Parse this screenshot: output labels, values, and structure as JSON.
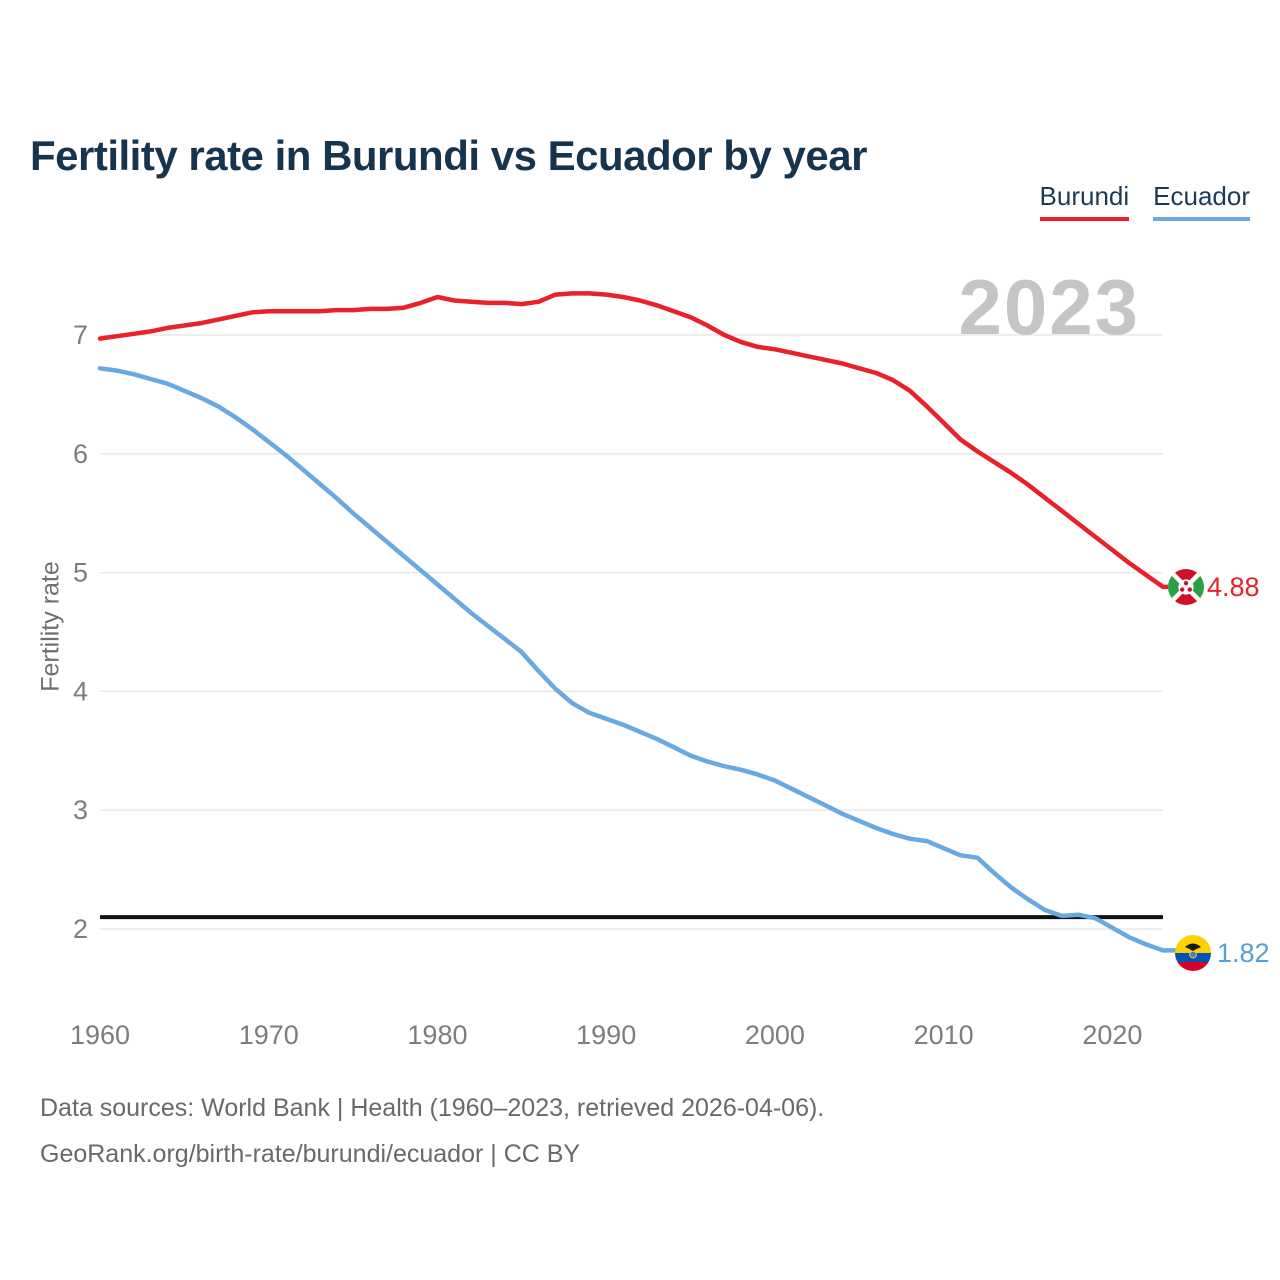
{
  "page": {
    "title": "Fertility rate in Burundi vs Ecuador by year",
    "watermark_year": "2023"
  },
  "legend": {
    "items": [
      {
        "label": "Burundi",
        "color": "#e8212a"
      },
      {
        "label": "Ecuador",
        "color": "#67a9e0"
      }
    ]
  },
  "footer": {
    "line1": "Data sources: World Bank | Health (1960–2023, retrieved 2026-04-06).",
    "line2": "GeoRank.org/birth-rate/burundi/ecuador | CC BY"
  },
  "chart_data": {
    "type": "line",
    "title": "Fertility rate in Burundi vs Ecuador by year",
    "xlabel": "",
    "ylabel": "Fertility rate",
    "x_range": [
      1960,
      2023
    ],
    "ylim": [
      1.7,
      7.5
    ],
    "grid": "horizontal",
    "legend_position": "top-right",
    "y_ticks": [
      7,
      6,
      5,
      4,
      3,
      2
    ],
    "x_ticks": [
      1960,
      1970,
      1980,
      1990,
      2000,
      2010,
      2020
    ],
    "reference_line": {
      "value": 2.1,
      "color": "#111111",
      "name": "replacement-rate"
    },
    "colors": {
      "grid": "#e8e8e8",
      "axis_text": "#7d7d7d",
      "watermark": "#c5c5c5"
    },
    "x": [
      1960,
      1961,
      1962,
      1963,
      1964,
      1965,
      1966,
      1967,
      1968,
      1969,
      1970,
      1971,
      1972,
      1973,
      1974,
      1975,
      1976,
      1977,
      1978,
      1979,
      1980,
      1981,
      1982,
      1983,
      1984,
      1985,
      1986,
      1987,
      1988,
      1989,
      1990,
      1991,
      1992,
      1993,
      1994,
      1995,
      1996,
      1997,
      1998,
      1999,
      2000,
      2001,
      2002,
      2003,
      2004,
      2005,
      2006,
      2007,
      2008,
      2009,
      2010,
      2011,
      2012,
      2013,
      2014,
      2015,
      2016,
      2017,
      2018,
      2019,
      2020,
      2021,
      2022,
      2023
    ],
    "series": [
      {
        "name": "Burundi",
        "color": "#e8212a",
        "values": [
          6.97,
          6.99,
          7.01,
          7.03,
          7.06,
          7.08,
          7.1,
          7.13,
          7.16,
          7.19,
          7.2,
          7.2,
          7.2,
          7.2,
          7.21,
          7.21,
          7.22,
          7.22,
          7.23,
          7.27,
          7.32,
          7.29,
          7.28,
          7.27,
          7.27,
          7.26,
          7.28,
          7.34,
          7.35,
          7.35,
          7.34,
          7.32,
          7.29,
          7.25,
          7.2,
          7.15,
          7.08,
          7.0,
          6.94,
          6.9,
          6.88,
          6.85,
          6.82,
          6.79,
          6.76,
          6.72,
          6.68,
          6.62,
          6.53,
          6.4,
          6.26,
          6.12,
          6.02,
          5.93,
          5.84,
          5.74,
          5.63,
          5.52,
          5.41,
          5.3,
          5.19,
          5.08,
          4.98,
          4.88
        ]
      },
      {
        "name": "Ecuador",
        "color": "#67a9e0",
        "values": [
          6.72,
          6.7,
          6.67,
          6.63,
          6.59,
          6.53,
          6.47,
          6.4,
          6.31,
          6.21,
          6.1,
          5.99,
          5.87,
          5.75,
          5.63,
          5.5,
          5.38,
          5.26,
          5.14,
          5.02,
          4.9,
          4.78,
          4.66,
          4.55,
          4.44,
          4.33,
          4.17,
          4.02,
          3.9,
          3.82,
          3.77,
          3.72,
          3.66,
          3.6,
          3.53,
          3.46,
          3.41,
          3.37,
          3.34,
          3.3,
          3.25,
          3.18,
          3.11,
          3.04,
          2.97,
          2.91,
          2.85,
          2.8,
          2.76,
          2.74,
          2.68,
          2.62,
          2.6,
          2.47,
          2.35,
          2.25,
          2.16,
          2.11,
          2.12,
          2.09,
          2.01,
          1.93,
          1.87,
          1.82
        ]
      }
    ],
    "end_labels": [
      {
        "series": "Burundi",
        "value": "4.88",
        "color": "#e8212a"
      },
      {
        "series": "Ecuador",
        "value": "1.82",
        "color": "#56a0da"
      }
    ]
  }
}
